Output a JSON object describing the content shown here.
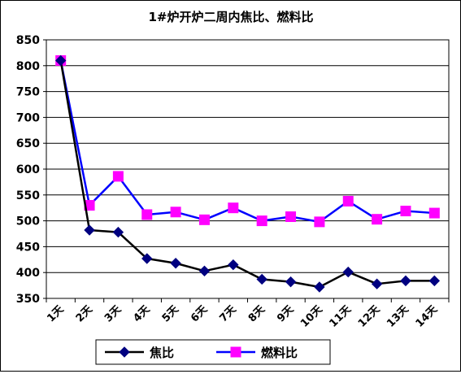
{
  "chart_data": {
    "type": "line",
    "title": "1#炉开炉二周内焦比、燃料比",
    "categories": [
      "1天",
      "2天",
      "3天",
      "4天",
      "5天",
      "6天",
      "7天",
      "8天",
      "9天",
      "10天",
      "11天",
      "12天",
      "13天",
      "14天"
    ],
    "ylim": [
      350,
      850
    ],
    "yticks": [
      350,
      400,
      450,
      500,
      550,
      600,
      650,
      700,
      750,
      800,
      850
    ],
    "grid": true,
    "legend_position": "bottom",
    "series": [
      {
        "name": "焦比",
        "color": "#000000",
        "marker": "diamond",
        "marker_color": "#000080",
        "values": [
          810,
          482,
          478,
          427,
          418,
          403,
          415,
          387,
          382,
          372,
          401,
          378,
          384,
          384
        ]
      },
      {
        "name": "燃料比",
        "color": "#0000ff",
        "marker": "square",
        "marker_color": "#ff00ff",
        "values": [
          810,
          530,
          586,
          512,
          517,
          502,
          525,
          500,
          508,
          498,
          538,
          503,
          519,
          515
        ]
      }
    ]
  }
}
